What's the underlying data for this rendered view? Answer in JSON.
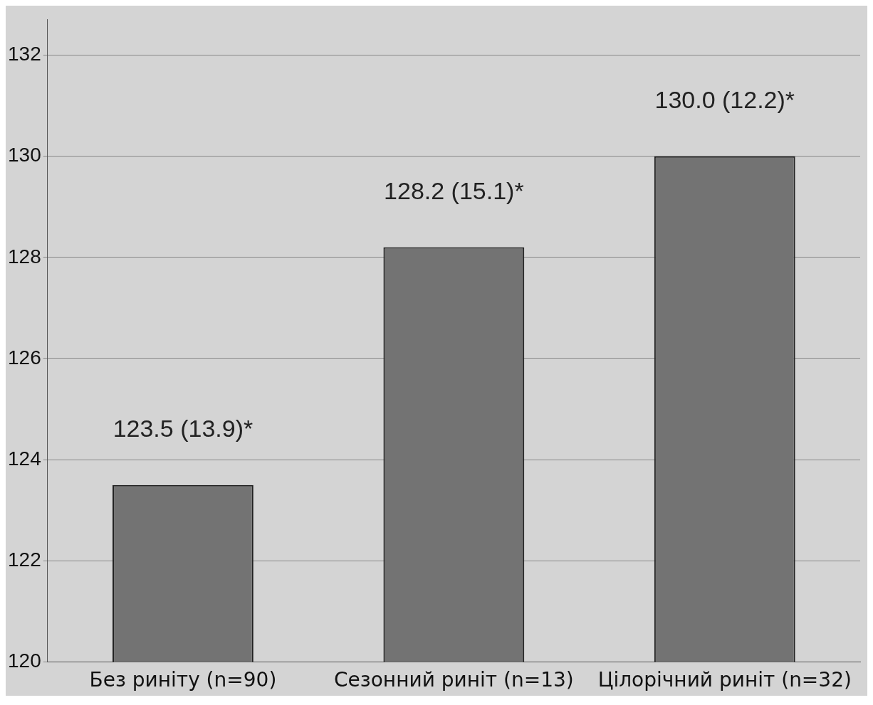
{
  "chart_data": {
    "type": "bar",
    "categories": [
      "Без риніту (n=90)",
      "Сезонний риніт (n=13)",
      "Цілорічний риніт (n=32)"
    ],
    "values": [
      123.5,
      128.2,
      130.0
    ],
    "color": "#737373",
    "value_labels": [
      "123.5 (13.9)*",
      "128.2 (15.1)*",
      "130.0 (12.2)*"
    ],
    "ylim": [
      120,
      132.7
    ],
    "yticks": [
      120,
      122,
      124,
      126,
      128,
      130,
      132
    ],
    "grid": "y",
    "legend": false
  }
}
